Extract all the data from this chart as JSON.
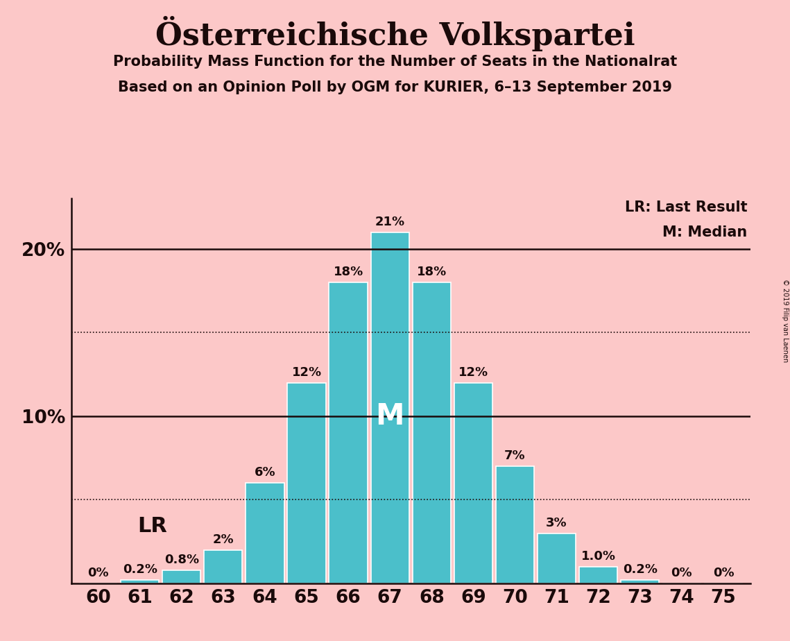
{
  "title": "Österreichische Volkspartei",
  "subtitle1": "Probability Mass Function for the Number of Seats in the Nationalrat",
  "subtitle2": "Based on an Opinion Poll by OGM for KURIER, 6–13 September 2019",
  "copyright": "© 2019 Filip van Laenen",
  "seats": [
    60,
    61,
    62,
    63,
    64,
    65,
    66,
    67,
    68,
    69,
    70,
    71,
    72,
    73,
    74,
    75
  ],
  "probabilities": [
    0.0,
    0.2,
    0.8,
    2.0,
    6.0,
    12.0,
    18.0,
    21.0,
    18.0,
    12.0,
    7.0,
    3.0,
    1.0,
    0.2,
    0.0,
    0.0
  ],
  "labels": [
    "0%",
    "0.2%",
    "0.8%",
    "2%",
    "6%",
    "12%",
    "18%",
    "21%",
    "18%",
    "12%",
    "7%",
    "3%",
    "1.0%",
    "0.2%",
    "0%",
    "0%"
  ],
  "bar_color": "#4bbfca",
  "background_color": "#fcc8c8",
  "text_color": "#1a0a0a",
  "median_seat": 67,
  "last_result_seat": 62,
  "last_result_prob_idx": 2,
  "legend_lr": "LR: Last Result",
  "legend_m": "M: Median",
  "solid_lines": [
    10.0,
    20.0
  ],
  "dotted_lines": [
    5.0,
    15.0
  ],
  "ylim": [
    0,
    23
  ],
  "bar_width": 0.92,
  "title_fontsize": 32,
  "subtitle_fontsize": 15,
  "tick_fontsize": 19,
  "label_fontsize": 13,
  "lr_fontsize": 22,
  "m_fontsize": 30,
  "legend_fontsize": 15
}
